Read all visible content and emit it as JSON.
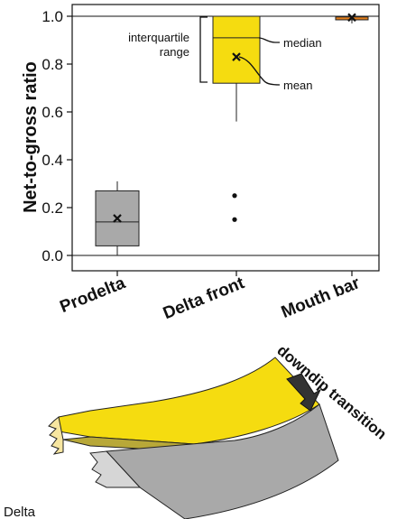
{
  "chart_data": {
    "type": "box",
    "ylabel": "Net-to-gross ratio",
    "ylim": [
      0,
      1
    ],
    "yticks": [
      "0.0",
      "0.2",
      "0.4",
      "0.6",
      "0.8",
      "1.0"
    ],
    "categories": [
      "Prodelta",
      "Delta front",
      "Mouth bar"
    ],
    "boxes": [
      {
        "category": "Prodelta",
        "q1": 0.04,
        "median": 0.14,
        "q3": 0.27,
        "whisker_low": 0.0,
        "whisker_high": 0.31,
        "mean": 0.155,
        "outliers": [],
        "color": "#a9a9a9"
      },
      {
        "category": "Delta front",
        "q1": 0.72,
        "median": 0.91,
        "q3": 1.0,
        "whisker_low": 0.56,
        "whisker_high": 1.0,
        "mean": 0.83,
        "outliers": [
          0.25,
          0.15
        ],
        "color": "#f5dc10"
      },
      {
        "category": "Mouth bar",
        "q1": 0.985,
        "median": 0.997,
        "q3": 1.0,
        "whisker_low": 0.97,
        "whisker_high": 1.0,
        "mean": 0.995,
        "outliers": [],
        "color": "#e07d1d"
      }
    ],
    "annotations": {
      "iqr_line1": "interquartile",
      "iqr_line2": "range",
      "median": "median",
      "mean": "mean"
    },
    "grid": false
  },
  "diagram": {
    "arrow_label": "downdip transition",
    "corner_label": "Delta"
  },
  "colors": {
    "yellow": "#f5dc10",
    "light_yellow": "#f7e6a0",
    "gray": "#a9a9a9",
    "light_gray": "#d6d6d6",
    "orange": "#e07d1d"
  }
}
